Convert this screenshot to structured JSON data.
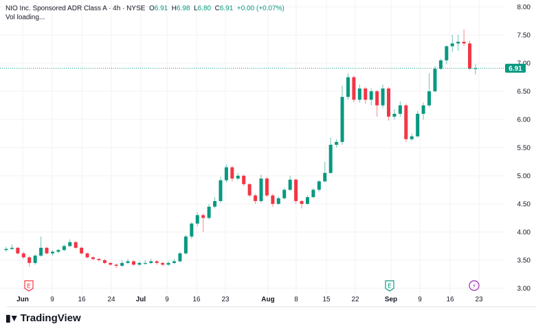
{
  "header": {
    "symbol_line": "NIO Inc. Sponsored ADR Class A · 4h · NYSE",
    "open_label": "O",
    "open": "6.91",
    "high_label": "H",
    "high": "6.98",
    "low_label": "L",
    "low": "6.80",
    "close_label": "C",
    "close": "6.91",
    "change": "+0.00 (+0.07%)",
    "volume": "Vol loading..."
  },
  "last_price": "6.91",
  "branding": {
    "name": "TradingView"
  },
  "colors": {
    "up": "#089981",
    "down": "#f23645",
    "grid": "#f2f0f3",
    "dividend": "#9c27b0"
  },
  "events": [
    {
      "type": "earnings",
      "label": "E",
      "near": "Jun",
      "color": "#f23645"
    },
    {
      "type": "earnings",
      "label": "E",
      "near": "Sep",
      "color": "#089981"
    },
    {
      "type": "dividend-split",
      "label": "⚡",
      "near": "23",
      "color": "#9c27b0"
    }
  ],
  "chart_data": {
    "type": "candlestick",
    "title": "NIO Inc. Sponsored ADR Class A · 4h · NYSE",
    "ylim": [
      3.0,
      8.0
    ],
    "yticks": [
      "8.00",
      "7.50",
      "7.00",
      "6.50",
      "6.00",
      "5.50",
      "5.00",
      "4.50",
      "4.00",
      "3.50",
      "3.00"
    ],
    "xticks": [
      {
        "label": "Jun",
        "bold": true
      },
      {
        "label": "9"
      },
      {
        "label": "16"
      },
      {
        "label": "24"
      },
      {
        "label": "Jul",
        "bold": true
      },
      {
        "label": "9"
      },
      {
        "label": "16"
      },
      {
        "label": "23"
      },
      {
        "label": "Aug",
        "bold": true
      },
      {
        "label": "8"
      },
      {
        "label": "15"
      },
      {
        "label": "22"
      },
      {
        "label": "Sep",
        "bold": true
      },
      {
        "label": "9"
      },
      {
        "label": "16"
      },
      {
        "label": "23"
      }
    ],
    "ohlc": [
      [
        3.68,
        3.74,
        3.65,
        3.7
      ],
      [
        3.7,
        3.78,
        3.68,
        3.72
      ],
      [
        3.72,
        3.74,
        3.6,
        3.62
      ],
      [
        3.62,
        3.65,
        3.52,
        3.55
      ],
      [
        3.55,
        3.58,
        3.38,
        3.45
      ],
      [
        3.45,
        3.6,
        3.42,
        3.58
      ],
      [
        3.58,
        3.92,
        3.56,
        3.72
      ],
      [
        3.72,
        3.74,
        3.6,
        3.62
      ],
      [
        3.62,
        3.68,
        3.58,
        3.65
      ],
      [
        3.65,
        3.7,
        3.62,
        3.68
      ],
      [
        3.68,
        3.78,
        3.66,
        3.75
      ],
      [
        3.75,
        3.87,
        3.73,
        3.82
      ],
      [
        3.82,
        3.84,
        3.7,
        3.72
      ],
      [
        3.72,
        3.74,
        3.6,
        3.62
      ],
      [
        3.62,
        3.64,
        3.53,
        3.55
      ],
      [
        3.55,
        3.57,
        3.5,
        3.52
      ],
      [
        3.52,
        3.54,
        3.48,
        3.5
      ],
      [
        3.5,
        3.52,
        3.43,
        3.45
      ],
      [
        3.45,
        3.47,
        3.4,
        3.42
      ],
      [
        3.42,
        3.44,
        3.36,
        3.4
      ],
      [
        3.4,
        3.5,
        3.38,
        3.45
      ],
      [
        3.45,
        3.52,
        3.43,
        3.48
      ],
      [
        3.48,
        3.5,
        3.4,
        3.42
      ],
      [
        3.42,
        3.48,
        3.4,
        3.45
      ],
      [
        3.45,
        3.5,
        3.42,
        3.45
      ],
      [
        3.45,
        3.52,
        3.43,
        3.48
      ],
      [
        3.48,
        3.5,
        3.42,
        3.45
      ],
      [
        3.45,
        3.47,
        3.39,
        3.42
      ],
      [
        3.42,
        3.48,
        3.4,
        3.45
      ],
      [
        3.45,
        3.52,
        3.43,
        3.48
      ],
      [
        3.48,
        3.65,
        3.46,
        3.62
      ],
      [
        3.62,
        3.95,
        3.6,
        3.92
      ],
      [
        3.92,
        4.18,
        3.88,
        4.15
      ],
      [
        4.15,
        4.35,
        4.1,
        4.3
      ],
      [
        4.3,
        4.33,
        4.0,
        4.25
      ],
      [
        4.25,
        4.5,
        4.22,
        4.45
      ],
      [
        4.45,
        4.62,
        4.42,
        4.55
      ],
      [
        4.55,
        4.98,
        4.52,
        4.92
      ],
      [
        4.92,
        5.2,
        4.88,
        5.15
      ],
      [
        5.15,
        5.17,
        4.9,
        4.95
      ],
      [
        4.95,
        5.05,
        4.92,
        5.0
      ],
      [
        5.0,
        5.02,
        4.82,
        4.85
      ],
      [
        4.85,
        4.87,
        4.62,
        4.65
      ],
      [
        4.65,
        4.68,
        4.5,
        4.55
      ],
      [
        4.55,
        5.02,
        4.52,
        4.95
      ],
      [
        4.95,
        4.98,
        4.62,
        4.65
      ],
      [
        4.65,
        4.68,
        4.45,
        4.5
      ],
      [
        4.5,
        4.63,
        4.48,
        4.6
      ],
      [
        4.6,
        4.78,
        4.58,
        4.75
      ],
      [
        4.75,
        5.0,
        4.73,
        4.93
      ],
      [
        4.93,
        4.95,
        4.5,
        4.55
      ],
      [
        4.55,
        4.57,
        4.42,
        4.5
      ],
      [
        4.5,
        4.65,
        4.48,
        4.62
      ],
      [
        4.62,
        4.78,
        4.6,
        4.75
      ],
      [
        4.75,
        4.92,
        4.72,
        4.9
      ],
      [
        4.9,
        5.25,
        4.88,
        5.05
      ],
      [
        5.05,
        5.68,
        5.03,
        5.55
      ],
      [
        5.55,
        5.65,
        5.5,
        5.6
      ],
      [
        5.6,
        6.6,
        5.55,
        6.4
      ],
      [
        6.4,
        6.82,
        6.35,
        6.75
      ],
      [
        6.75,
        6.78,
        6.3,
        6.35
      ],
      [
        6.35,
        6.62,
        6.3,
        6.55
      ],
      [
        6.55,
        6.58,
        6.28,
        6.35
      ],
      [
        6.35,
        6.55,
        6.25,
        6.5
      ],
      [
        6.5,
        6.52,
        6.05,
        6.25
      ],
      [
        6.25,
        6.62,
        6.2,
        6.55
      ],
      [
        6.55,
        6.58,
        5.98,
        6.05
      ],
      [
        6.05,
        6.18,
        6.0,
        6.1
      ],
      [
        6.1,
        6.32,
        6.05,
        6.25
      ],
      [
        6.25,
        6.28,
        5.6,
        5.65
      ],
      [
        5.65,
        5.75,
        5.62,
        5.7
      ],
      [
        5.7,
        6.15,
        5.68,
        6.1
      ],
      [
        6.1,
        6.3,
        6.0,
        6.25
      ],
      [
        6.25,
        6.82,
        6.22,
        6.5
      ],
      [
        6.5,
        6.95,
        6.48,
        6.9
      ],
      [
        6.9,
        7.08,
        6.88,
        7.05
      ],
      [
        7.05,
        7.32,
        6.98,
        7.3
      ],
      [
        7.3,
        7.5,
        7.2,
        7.35
      ],
      [
        7.35,
        7.5,
        7.22,
        7.38
      ],
      [
        7.38,
        7.6,
        7.3,
        7.35
      ],
      [
        7.35,
        7.4,
        6.88,
        6.9
      ],
      [
        6.9,
        6.98,
        6.8,
        6.91
      ]
    ]
  }
}
